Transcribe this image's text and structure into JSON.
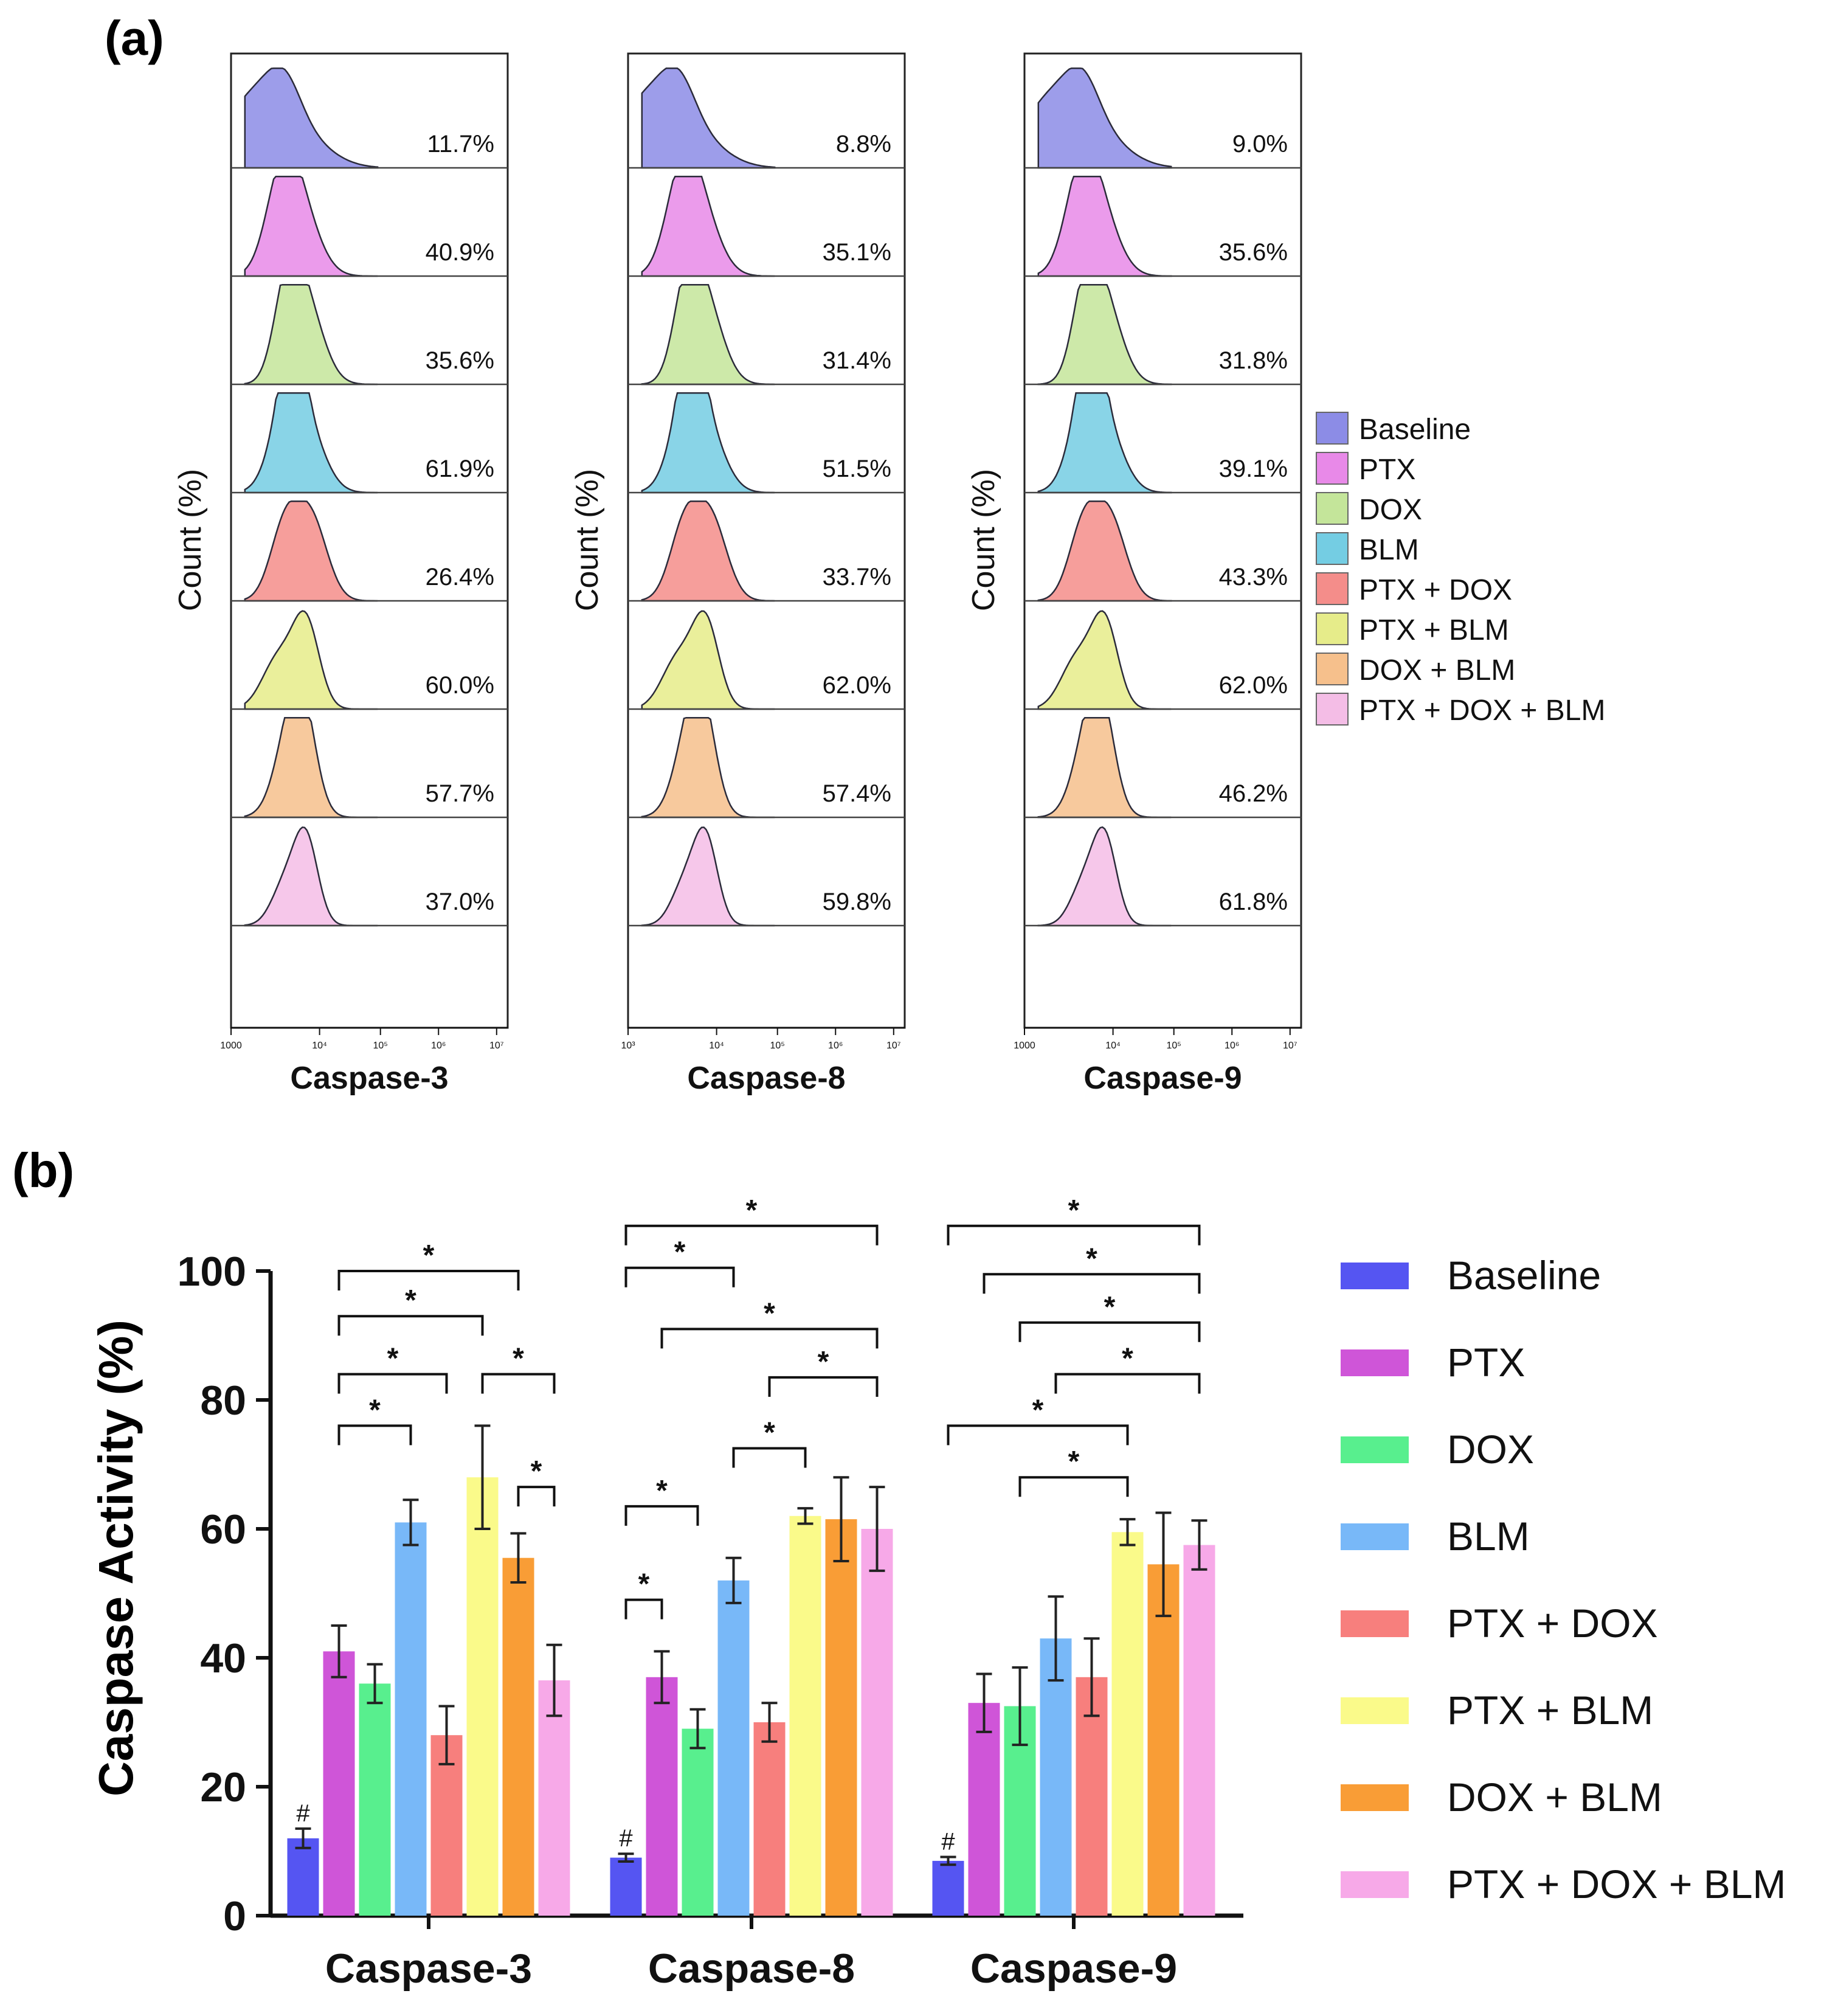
{
  "chart_data": [
    {
      "type": "histogram-overlay",
      "panel_label": "(a)",
      "ylabel": "Count (%)",
      "legend": [
        "Baseline",
        "PTX",
        "DOX",
        "BLM",
        "PTX + DOX",
        "PTX + BLM",
        "DOX + BLM",
        "PTX + DOX + BLM"
      ],
      "colors": [
        "#8c8ce6",
        "#e889e8",
        "#c4e59a",
        "#74cde3",
        "#f48d8a",
        "#e6ec8a",
        "#f6c08c",
        "#f4bde6"
      ],
      "panels": [
        {
          "xlabel": "Caspase-3",
          "ticks": [
            "1000",
            "10⁴",
            "10⁵",
            "10⁶",
            "10⁷"
          ],
          "percents": [
            "11.7%",
            "40.9%",
            "35.6%",
            "61.9%",
            "26.4%",
            "60.0%",
            "57.7%",
            "37.0%"
          ]
        },
        {
          "xlabel": "Caspase-8",
          "ticks": [
            "10³",
            "10⁴",
            "10⁵",
            "10⁶",
            "10⁷"
          ],
          "percents": [
            "8.8%",
            "35.1%",
            "31.4%",
            "51.5%",
            "33.7%",
            "62.0%",
            "57.4%",
            "59.8%"
          ]
        },
        {
          "xlabel": "Caspase-9",
          "ticks": [
            "1000",
            "10⁴",
            "10⁵",
            "10⁶",
            "10⁷"
          ],
          "percents": [
            "9.0%",
            "35.6%",
            "31.8%",
            "39.1%",
            "43.3%",
            "62.0%",
            "46.2%",
            "61.8%"
          ]
        }
      ]
    },
    {
      "type": "bar",
      "panel_label": "(b)",
      "ylabel": "Caspase Activity (%)",
      "ylim": [
        0,
        100
      ],
      "yticks": [
        "0",
        "20",
        "40",
        "60",
        "80",
        "100"
      ],
      "categories": [
        "Caspase-3",
        "Caspase-8",
        "Caspase-9"
      ],
      "series": [
        {
          "name": "Baseline",
          "color": "#5555f2",
          "values": [
            12,
            9,
            8.5
          ],
          "errors": [
            1.5,
            0.6,
            0.6
          ]
        },
        {
          "name": "PTX",
          "color": "#cf55d8",
          "values": [
            41,
            37,
            33
          ],
          "errors": [
            4,
            4,
            4.5
          ]
        },
        {
          "name": "DOX",
          "color": "#58ef8e",
          "values": [
            36,
            29,
            32.5
          ],
          "errors": [
            3,
            3,
            6
          ]
        },
        {
          "name": "BLM",
          "color": "#78b8f8",
          "values": [
            61,
            52,
            43
          ],
          "errors": [
            3.5,
            3.5,
            6.5
          ]
        },
        {
          "name": "PTX + DOX",
          "color": "#f77f7d",
          "values": [
            28,
            30,
            37
          ],
          "errors": [
            4.5,
            3,
            6
          ]
        },
        {
          "name": "PTX + BLM",
          "color": "#fafa8a",
          "values": [
            68,
            62,
            59.5
          ],
          "errors": [
            8,
            1.2,
            2
          ]
        },
        {
          "name": "DOX + BLM",
          "color": "#f99d36",
          "values": [
            55.5,
            61.5,
            54.5
          ],
          "errors": [
            3.8,
            6.5,
            8
          ]
        },
        {
          "name": "PTX + DOX + BLM",
          "color": "#f7a9e8",
          "values": [
            36.5,
            60,
            57.5
          ],
          "errors": [
            5.5,
            6.5,
            3.8
          ]
        }
      ],
      "markers": [
        {
          "group": 0,
          "series": 0,
          "text": "#"
        },
        {
          "group": 1,
          "series": 0,
          "text": "#"
        },
        {
          "group": 2,
          "series": 0,
          "text": "#"
        }
      ],
      "significance": [
        {
          "group": 0,
          "from": 1,
          "to": 6,
          "level": 100,
          "text": "*"
        },
        {
          "group": 0,
          "from": 1,
          "to": 5,
          "level": 93,
          "text": "*"
        },
        {
          "group": 0,
          "from": 1,
          "to": 4,
          "level": 84,
          "text": "*"
        },
        {
          "group": 0,
          "from": 1,
          "to": 3,
          "level": 76,
          "text": "*"
        },
        {
          "group": 0,
          "from": 5,
          "to": 7,
          "level": 84,
          "text": "*"
        },
        {
          "group": 0,
          "from": 6,
          "to": 7,
          "level": 66.5,
          "text": "*"
        },
        {
          "group": 1,
          "from": 0,
          "to": 7,
          "level": 107,
          "text": "*"
        },
        {
          "group": 1,
          "from": 0,
          "to": 3,
          "level": 100.5,
          "text": "*"
        },
        {
          "group": 1,
          "from": 1,
          "to": 7,
          "level": 91,
          "text": "*"
        },
        {
          "group": 1,
          "from": 4,
          "to": 7,
          "level": 83.5,
          "text": "*"
        },
        {
          "group": 1,
          "from": 3,
          "to": 5,
          "level": 72.5,
          "text": "*"
        },
        {
          "group": 1,
          "from": 0,
          "to": 2,
          "level": 63.5,
          "text": "*"
        },
        {
          "group": 1,
          "from": 0,
          "to": 1,
          "level": 49,
          "text": "*"
        },
        {
          "group": 2,
          "from": 0,
          "to": 7,
          "level": 107,
          "text": "*"
        },
        {
          "group": 2,
          "from": 1,
          "to": 7,
          "level": 99.5,
          "text": "*"
        },
        {
          "group": 2,
          "from": 2,
          "to": 7,
          "level": 92,
          "text": "*"
        },
        {
          "group": 2,
          "from": 3,
          "to": 7,
          "level": 84,
          "text": "*"
        },
        {
          "group": 2,
          "from": 0,
          "to": 5,
          "level": 76,
          "text": "*"
        },
        {
          "group": 2,
          "from": 2,
          "to": 5,
          "level": 68,
          "text": "*"
        }
      ]
    }
  ]
}
